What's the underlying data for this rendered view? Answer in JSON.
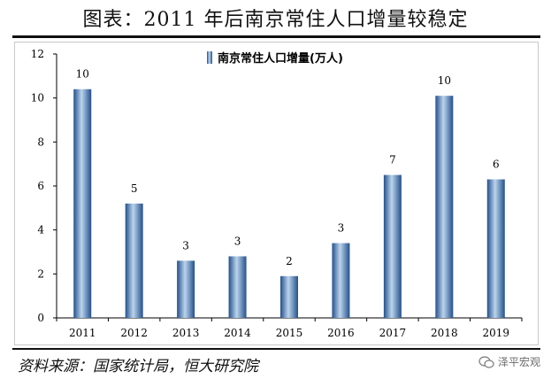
{
  "title": "图表：2011 年后南京常住人口增量较稳定",
  "source": "资料来源：国家统计局，恒大研究院",
  "watermark": "泽平宏观",
  "watermark_icon": "wechat-icon",
  "colors": {
    "bar_light": "#bcd4ec",
    "bar_mid": "#5b8fc7",
    "bar_dark": "#23508c",
    "axis": "#000000"
  },
  "chart_data": {
    "type": "bar",
    "categories": [
      "2011",
      "2012",
      "2013",
      "2014",
      "2015",
      "2016",
      "2017",
      "2018",
      "2019"
    ],
    "series": [
      {
        "name": "南京常住人口增量(万人)",
        "values": [
          10.4,
          5.2,
          2.6,
          2.8,
          1.9,
          3.4,
          6.5,
          10.1,
          6.3
        ]
      }
    ],
    "data_labels": [
      "10",
      "5",
      "3",
      "3",
      "2",
      "3",
      "7",
      "10",
      "6"
    ],
    "yticks": [
      "0",
      "2",
      "4",
      "6",
      "8",
      "10",
      "12"
    ],
    "ylim": [
      0,
      12
    ],
    "grid": false,
    "legend": "top-center",
    "title": "",
    "xlabel": "",
    "ylabel": ""
  }
}
